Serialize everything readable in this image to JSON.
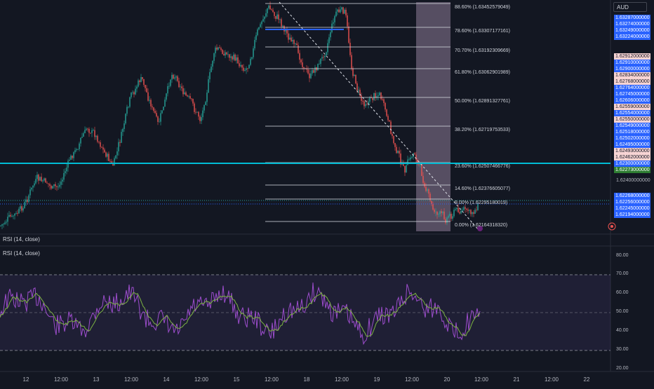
{
  "rsi_pane": {
    "label_top": "RSI (14, close)",
    "label_bottom": "RSI (14, close)",
    "ticks": [
      "80.00",
      "70.00",
      "60.00",
      "50.00",
      "40.00",
      "30.00",
      "20.00"
    ]
  },
  "price_axis": {
    "currency": "AUD",
    "plain_tick": "1.62400000000",
    "tags": [
      {
        "text": "1.63287000000",
        "color": "#2962ff"
      },
      {
        "text": "1.63274000000",
        "color": "#2962ff"
      },
      {
        "text": "1.63249000000",
        "color": "#2962ff"
      },
      {
        "text": "1.63224000000",
        "color": "#2962ff"
      },
      {
        "text": "1.62912000000",
        "color": "#f7d4d4"
      },
      {
        "text": "1.62910000000",
        "color": "#2962ff"
      },
      {
        "text": "1.62900000000",
        "color": "#2962ff"
      },
      {
        "text": "1.62834000000",
        "color": "#f7d4d4"
      },
      {
        "text": "1.62768000000",
        "color": "#f7d4d4"
      },
      {
        "text": "1.62764000000",
        "color": "#2962ff"
      },
      {
        "text": "1.62745000000",
        "color": "#2962ff"
      },
      {
        "text": "1.62606000000",
        "color": "#2962ff"
      },
      {
        "text": "1.62559000000",
        "color": "#f7d4d4"
      },
      {
        "text": "1.62554000000",
        "color": "#2962ff"
      },
      {
        "text": "1.62550000000",
        "color": "#f7d4d4"
      },
      {
        "text": "1.62549000000",
        "color": "#2962ff"
      },
      {
        "text": "1.62518000000",
        "color": "#2962ff"
      },
      {
        "text": "1.62502000000",
        "color": "#2962ff"
      },
      {
        "text": "1.62495000000",
        "color": "#2962ff"
      },
      {
        "text": "1.62493000000",
        "color": "#f7d4d4"
      },
      {
        "text": "1.62462000000",
        "color": "#f7d4d4"
      },
      {
        "text": "1.62300000000",
        "color": "#2962ff"
      },
      {
        "text": "1.62273000000",
        "color": "#2e7d32"
      },
      {
        "text": "1.62268000000",
        "color": "#2962ff"
      },
      {
        "text": "1.62256000000",
        "color": "#2962ff"
      },
      {
        "text": "1.62245000000",
        "color": "#2962ff"
      },
      {
        "text": "1.62194000000",
        "color": "#2962ff"
      }
    ]
  },
  "fib_levels": [
    {
      "label": "88.60% (1.63452579049)",
      "ratio": 0.886
    },
    {
      "label": "78.60% (1.63307177161)",
      "ratio": 0.786
    },
    {
      "label": "70.70% (1.63192309669)",
      "ratio": 0.707
    },
    {
      "label": "61.80% (1.63062901989)",
      "ratio": 0.618
    },
    {
      "label": "50.00% (1.62891327761)",
      "ratio": 0.5
    },
    {
      "label": "38.20% (1.62719753533)",
      "ratio": 0.382
    },
    {
      "label": "23.60% (1.62507466776)",
      "ratio": 0.236
    },
    {
      "label": "14.60% (1.62376605077)",
      "ratio": 0.146
    },
    {
      "label": "9.00% (1.62295180019)",
      "ratio": 0.09
    },
    {
      "label": "0.00% (1.62164318320)",
      "ratio": 0.0
    }
  ],
  "time_axis": [
    "12",
    "12:00",
    "13",
    "12:00",
    "14",
    "12:00",
    "15",
    "12:00",
    "18",
    "12:00",
    "19",
    "12:00",
    "20",
    "12:00",
    "21",
    "12:00",
    "22"
  ],
  "colors": {
    "background": "#131722",
    "up_candle": "#26a69a",
    "down_candle": "#ef5350",
    "horizontal_line": "#00bcd4",
    "rsi_line": "#9c4dcc",
    "rsi_ma": "#7cb342",
    "rsi_band": "#7e57c2",
    "highlight_box": "#e1bee7"
  }
}
